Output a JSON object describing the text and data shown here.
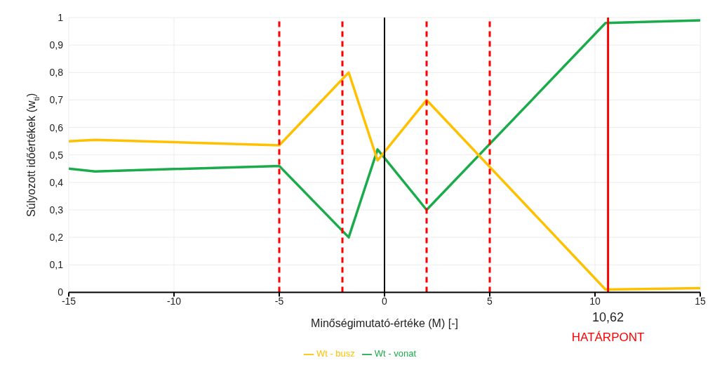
{
  "chart_data": {
    "type": "line",
    "xlabel": "Minőségimutató-értéke (M) [-]",
    "ylabel": "Súlyozott időértékek (w$_{ti}$)",
    "series": [
      {
        "name": "Wt - vonat",
        "color": "#1aab4b",
        "x": [
          -15,
          -13.75,
          -5,
          -1.7,
          -0.33,
          2,
          10.5,
          15
        ],
        "values": [
          0.45,
          0.44,
          0.46,
          0.2,
          0.52,
          0.3,
          0.98,
          0.99
        ]
      },
      {
        "name": "Wt - busz",
        "color": "#ffc000",
        "x": [
          -15,
          -13.75,
          -5,
          -1.7,
          -0.33,
          2,
          10.5,
          15
        ],
        "values": [
          0.55,
          0.555,
          0.535,
          0.8,
          0.48,
          0.7,
          0.01,
          0.015
        ]
      }
    ],
    "xlim": [
      -15,
      15
    ],
    "xticks": [
      -15,
      -10,
      -5,
      0,
      5,
      10,
      15
    ],
    "ylim": [
      0,
      1
    ],
    "yticks": [
      0,
      {
        "value": 0.1,
        "label": "0,1"
      },
      {
        "value": 0.2,
        "label": "0,2"
      },
      {
        "value": 0.3,
        "label": "0,3"
      },
      {
        "value": 0.4,
        "label": "0,4"
      },
      {
        "value": 0.5,
        "label": "0,5"
      },
      {
        "value": 0.6,
        "label": "0,6"
      },
      {
        "value": 0.7,
        "label": "0,7"
      },
      {
        "value": 0.8,
        "label": "0,8"
      },
      {
        "value": 0.9,
        "label": "0,9"
      },
      1
    ],
    "ref_lines": [
      {
        "axis": "x",
        "value": 0,
        "color": "#000000",
        "line_style": "solid"
      },
      {
        "axis": "x",
        "value": -5,
        "color": "#ff0000",
        "line_style": "dashed"
      },
      {
        "axis": "x",
        "value": -2,
        "color": "#ff0000",
        "line_style": "dashed"
      },
      {
        "axis": "x",
        "value": 2,
        "color": "#ff0000",
        "line_style": "dashed"
      },
      {
        "axis": "x",
        "value": 5,
        "color": "#ff0000",
        "line_style": "dashed"
      },
      {
        "axis": "x",
        "value": 10.62,
        "label": "10,62",
        "color": "#ff0000",
        "line_style": "solid"
      }
    ],
    "annotations": [
      "HATÁRPONT"
    ],
    "grid": true,
    "legend": "bottom",
    "marker": "none",
    "line_style": "solid"
  }
}
